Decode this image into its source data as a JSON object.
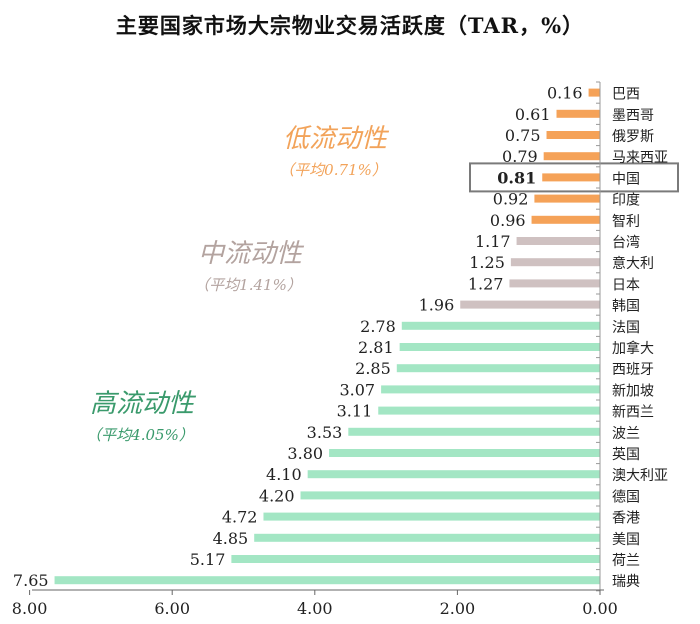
{
  "chart_data": {
    "type": "bar",
    "orientation": "horizontal",
    "title": "主要国家市场大宗物业交易活跃度（TAR，%）",
    "categories": [
      "巴西",
      "墨西哥",
      "俄罗斯",
      "马来西亚",
      "中国",
      "印度",
      "智利",
      "台湾",
      "意大利",
      "日本",
      "韩国",
      "法国",
      "加拿大",
      "西班牙",
      "新加坡",
      "新西兰",
      "波兰",
      "英国",
      "澳大利亚",
      "德国",
      "香港",
      "美国",
      "荷兰",
      "瑞典"
    ],
    "values": [
      0.16,
      0.61,
      0.75,
      0.79,
      0.81,
      0.92,
      0.96,
      1.17,
      1.25,
      1.27,
      1.96,
      2.78,
      2.81,
      2.85,
      3.07,
      3.11,
      3.53,
      3.8,
      4.1,
      4.2,
      4.72,
      4.85,
      5.17,
      7.65
    ],
    "value_labels": [
      "0.16",
      "0.61",
      "0.75",
      "0.79",
      "0.81",
      "0.92",
      "0.96",
      "1.17",
      "1.25",
      "1.27",
      "1.96",
      "2.78",
      "2.81",
      "2.85",
      "3.07",
      "3.11",
      "3.53",
      "3.80",
      "4.10",
      "4.20",
      "4.72",
      "4.85",
      "5.17",
      "7.65"
    ],
    "groups": [
      "low",
      "low",
      "low",
      "low",
      "low",
      "low",
      "low",
      "mid",
      "mid",
      "mid",
      "mid",
      "high",
      "high",
      "high",
      "high",
      "high",
      "high",
      "high",
      "high",
      "high",
      "high",
      "high",
      "high",
      "high"
    ],
    "highlight": "中国",
    "x_reversed": true,
    "xlim": [
      0,
      8
    ],
    "x_ticks": [
      8,
      6,
      4,
      2,
      0
    ],
    "x_tick_labels": [
      "8.00",
      "6.00",
      "4.00",
      "2.00",
      "0.00"
    ],
    "grid": false,
    "group_labels": [
      {
        "key": "low",
        "name": "低流动性",
        "avg": "（平均0.71%）",
        "color": "#f2a35a"
      },
      {
        "key": "mid",
        "name": "中流动性",
        "avg": "（平均1.41%）",
        "color": "#b3a39f"
      },
      {
        "key": "high",
        "name": "高流动性",
        "avg": "（平均4.05%）",
        "color": "#3a9a6c"
      }
    ],
    "colors": {
      "low": "#f5a258",
      "mid": "#cfc1c1",
      "high": "#a3e6c4",
      "highlight_box": "#7a7a7a"
    }
  }
}
